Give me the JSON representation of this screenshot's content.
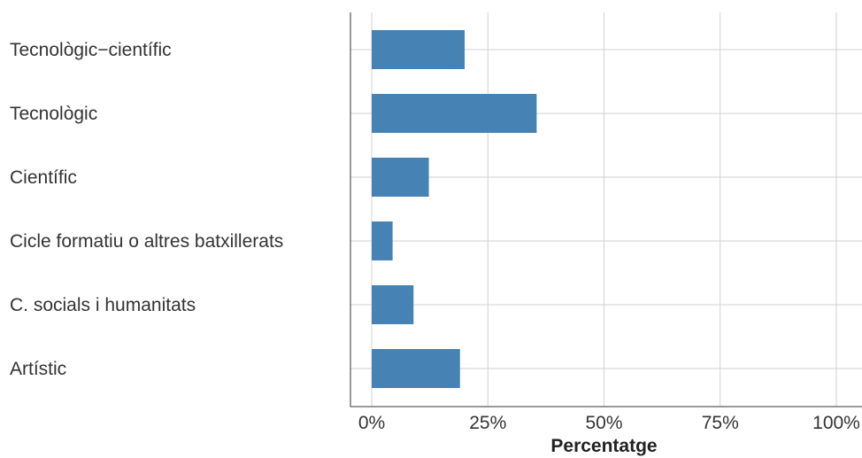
{
  "chart_data": {
    "type": "bar",
    "orientation": "horizontal",
    "categories": [
      "Tecnològic−científic",
      "Tecnològic",
      "Científic",
      "Cicle formatiu o altres batxillerats",
      "C. socials i humanitats",
      "Artístic"
    ],
    "values": [
      20,
      35.5,
      12.3,
      4.5,
      9,
      19
    ],
    "xlabel": "Percentatge",
    "xlim": [
      0,
      100
    ],
    "xticks": [
      0,
      25,
      50,
      75,
      100
    ],
    "xtick_labels": [
      "0%",
      "25%",
      "50%",
      "75%",
      "100%"
    ],
    "grid": true,
    "colors": {
      "bar": "#4682b4",
      "grid": "#d2d2d2",
      "axis": "#333333"
    }
  }
}
